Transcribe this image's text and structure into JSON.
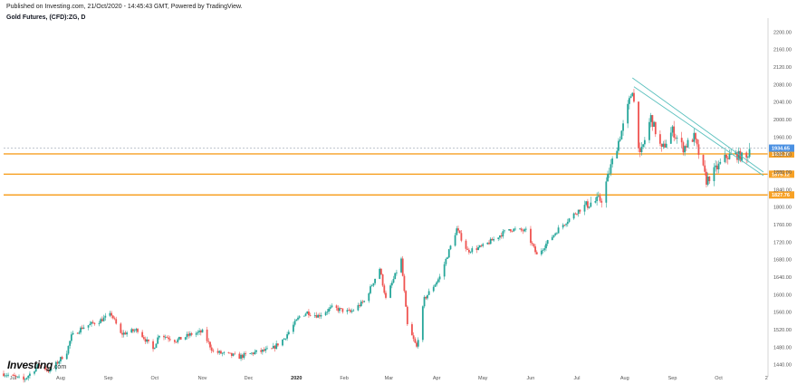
{
  "header": {
    "published": "Published on Investing.com, 21/Oct/2020 - 14:45:43 GMT, Powered by TradingView.",
    "symbol": "Gold Futures, (CFD):ZG, D"
  },
  "logo": {
    "main": "Investing",
    "sub": ".com"
  },
  "colors": {
    "up": "#26a69a",
    "down": "#ef5350",
    "level": "#f7a125",
    "price_tag": "#4a90e2",
    "trendline": "#5bc0be"
  },
  "chart_data": {
    "type": "candlestick",
    "title": "Gold Futures, (CFD):ZG, D",
    "yaxis": {
      "side": "right",
      "range": [
        1425,
        2215
      ],
      "ticks": [
        1440,
        1480,
        1520,
        1560,
        1600,
        1640,
        1680,
        1720,
        1760,
        1800,
        1840,
        1880,
        1920,
        1960,
        2000,
        2040,
        2080,
        2120,
        2160,
        2200
      ],
      "tick_labels": [
        "1440.00",
        "1480.00",
        "1520.00",
        "1560.00",
        "1600.00",
        "1640.00",
        "1680.00",
        "1720.00",
        "1760.00",
        "1800.00",
        "1840.00",
        "1880.00",
        "1920.00",
        "1960.00",
        "2000.00",
        "2040.00",
        "2080.00",
        "2120.00",
        "2160.00",
        "2200.00"
      ]
    },
    "xaxis": {
      "labels": [
        "Jul",
        "Aug",
        "Sep",
        "Oct",
        "Nov",
        "Dec",
        "2020",
        "Feb",
        "Mar",
        "Apr",
        "May",
        "Jun",
        "Jul",
        "Aug",
        "Sep",
        "Oct",
        "2"
      ],
      "bold_labels": [
        "2020"
      ],
      "start": "2019-06-25",
      "end": "2020-11-02"
    },
    "price_levels": [
      {
        "value": 1921.38,
        "label": "1921.38"
      },
      {
        "value": 1875.12,
        "label": "1875.12"
      },
      {
        "value": 1827.76,
        "label": "1827.76"
      }
    ],
    "current_price": {
      "value": 1934.65,
      "label": "1934.65"
    },
    "trendlines": [
      {
        "from": [
          "2020-08-06",
          2095
        ],
        "to": [
          "2020-10-30",
          1880
        ]
      },
      {
        "from": [
          "2020-08-07",
          2075
        ],
        "to": [
          "2020-10-30",
          1872
        ]
      }
    ],
    "price_path": [
      [
        "2019-06-25",
        1420
      ],
      [
        "2019-07-08",
        1405
      ],
      [
        "2019-07-18",
        1440
      ],
      [
        "2019-07-25",
        1425
      ],
      [
        "2019-08-05",
        1470
      ],
      [
        "2019-08-08",
        1505
      ],
      [
        "2019-08-15",
        1525
      ],
      [
        "2019-08-26",
        1540
      ],
      [
        "2019-09-03",
        1555
      ],
      [
        "2019-09-09",
        1510
      ],
      [
        "2019-09-20",
        1520
      ],
      [
        "2019-09-30",
        1475
      ],
      [
        "2019-10-04",
        1510
      ],
      [
        "2019-10-15",
        1495
      ],
      [
        "2019-10-25",
        1510
      ],
      [
        "2019-11-01",
        1515
      ],
      [
        "2019-11-08",
        1470
      ],
      [
        "2019-11-15",
        1465
      ],
      [
        "2019-11-25",
        1458
      ],
      [
        "2019-12-05",
        1468
      ],
      [
        "2019-12-16",
        1475
      ],
      [
        "2019-12-24",
        1500
      ],
      [
        "2020-01-03",
        1550
      ],
      [
        "2020-01-08",
        1560
      ],
      [
        "2020-01-15",
        1552
      ],
      [
        "2020-01-24",
        1570
      ],
      [
        "2020-02-05",
        1560
      ],
      [
        "2020-02-14",
        1585
      ],
      [
        "2020-02-24",
        1660
      ],
      [
        "2020-02-28",
        1590
      ],
      [
        "2020-03-09",
        1680
      ],
      [
        "2020-03-13",
        1530
      ],
      [
        "2020-03-19",
        1480
      ],
      [
        "2020-03-24",
        1590
      ],
      [
        "2020-04-03",
        1640
      ],
      [
        "2020-04-14",
        1750
      ],
      [
        "2020-04-21",
        1700
      ],
      [
        "2020-05-01",
        1710
      ],
      [
        "2020-05-18",
        1750
      ],
      [
        "2020-05-29",
        1745
      ],
      [
        "2020-06-05",
        1690
      ],
      [
        "2020-06-19",
        1750
      ],
      [
        "2020-07-01",
        1790
      ],
      [
        "2020-07-10",
        1810
      ],
      [
        "2020-07-17",
        1818
      ],
      [
        "2020-07-24",
        1905
      ],
      [
        "2020-07-31",
        1985
      ],
      [
        "2020-08-06",
        2070
      ],
      [
        "2020-08-11",
        1915
      ],
      [
        "2020-08-18",
        2005
      ],
      [
        "2020-08-25",
        1930
      ],
      [
        "2020-09-01",
        1975
      ],
      [
        "2020-09-08",
        1935
      ],
      [
        "2020-09-15",
        1960
      ],
      [
        "2020-09-23",
        1860
      ],
      [
        "2020-09-30",
        1890
      ],
      [
        "2020-10-06",
        1915
      ],
      [
        "2020-10-12",
        1920
      ],
      [
        "2020-10-19",
        1910
      ],
      [
        "2020-10-21",
        1934.65
      ]
    ]
  }
}
